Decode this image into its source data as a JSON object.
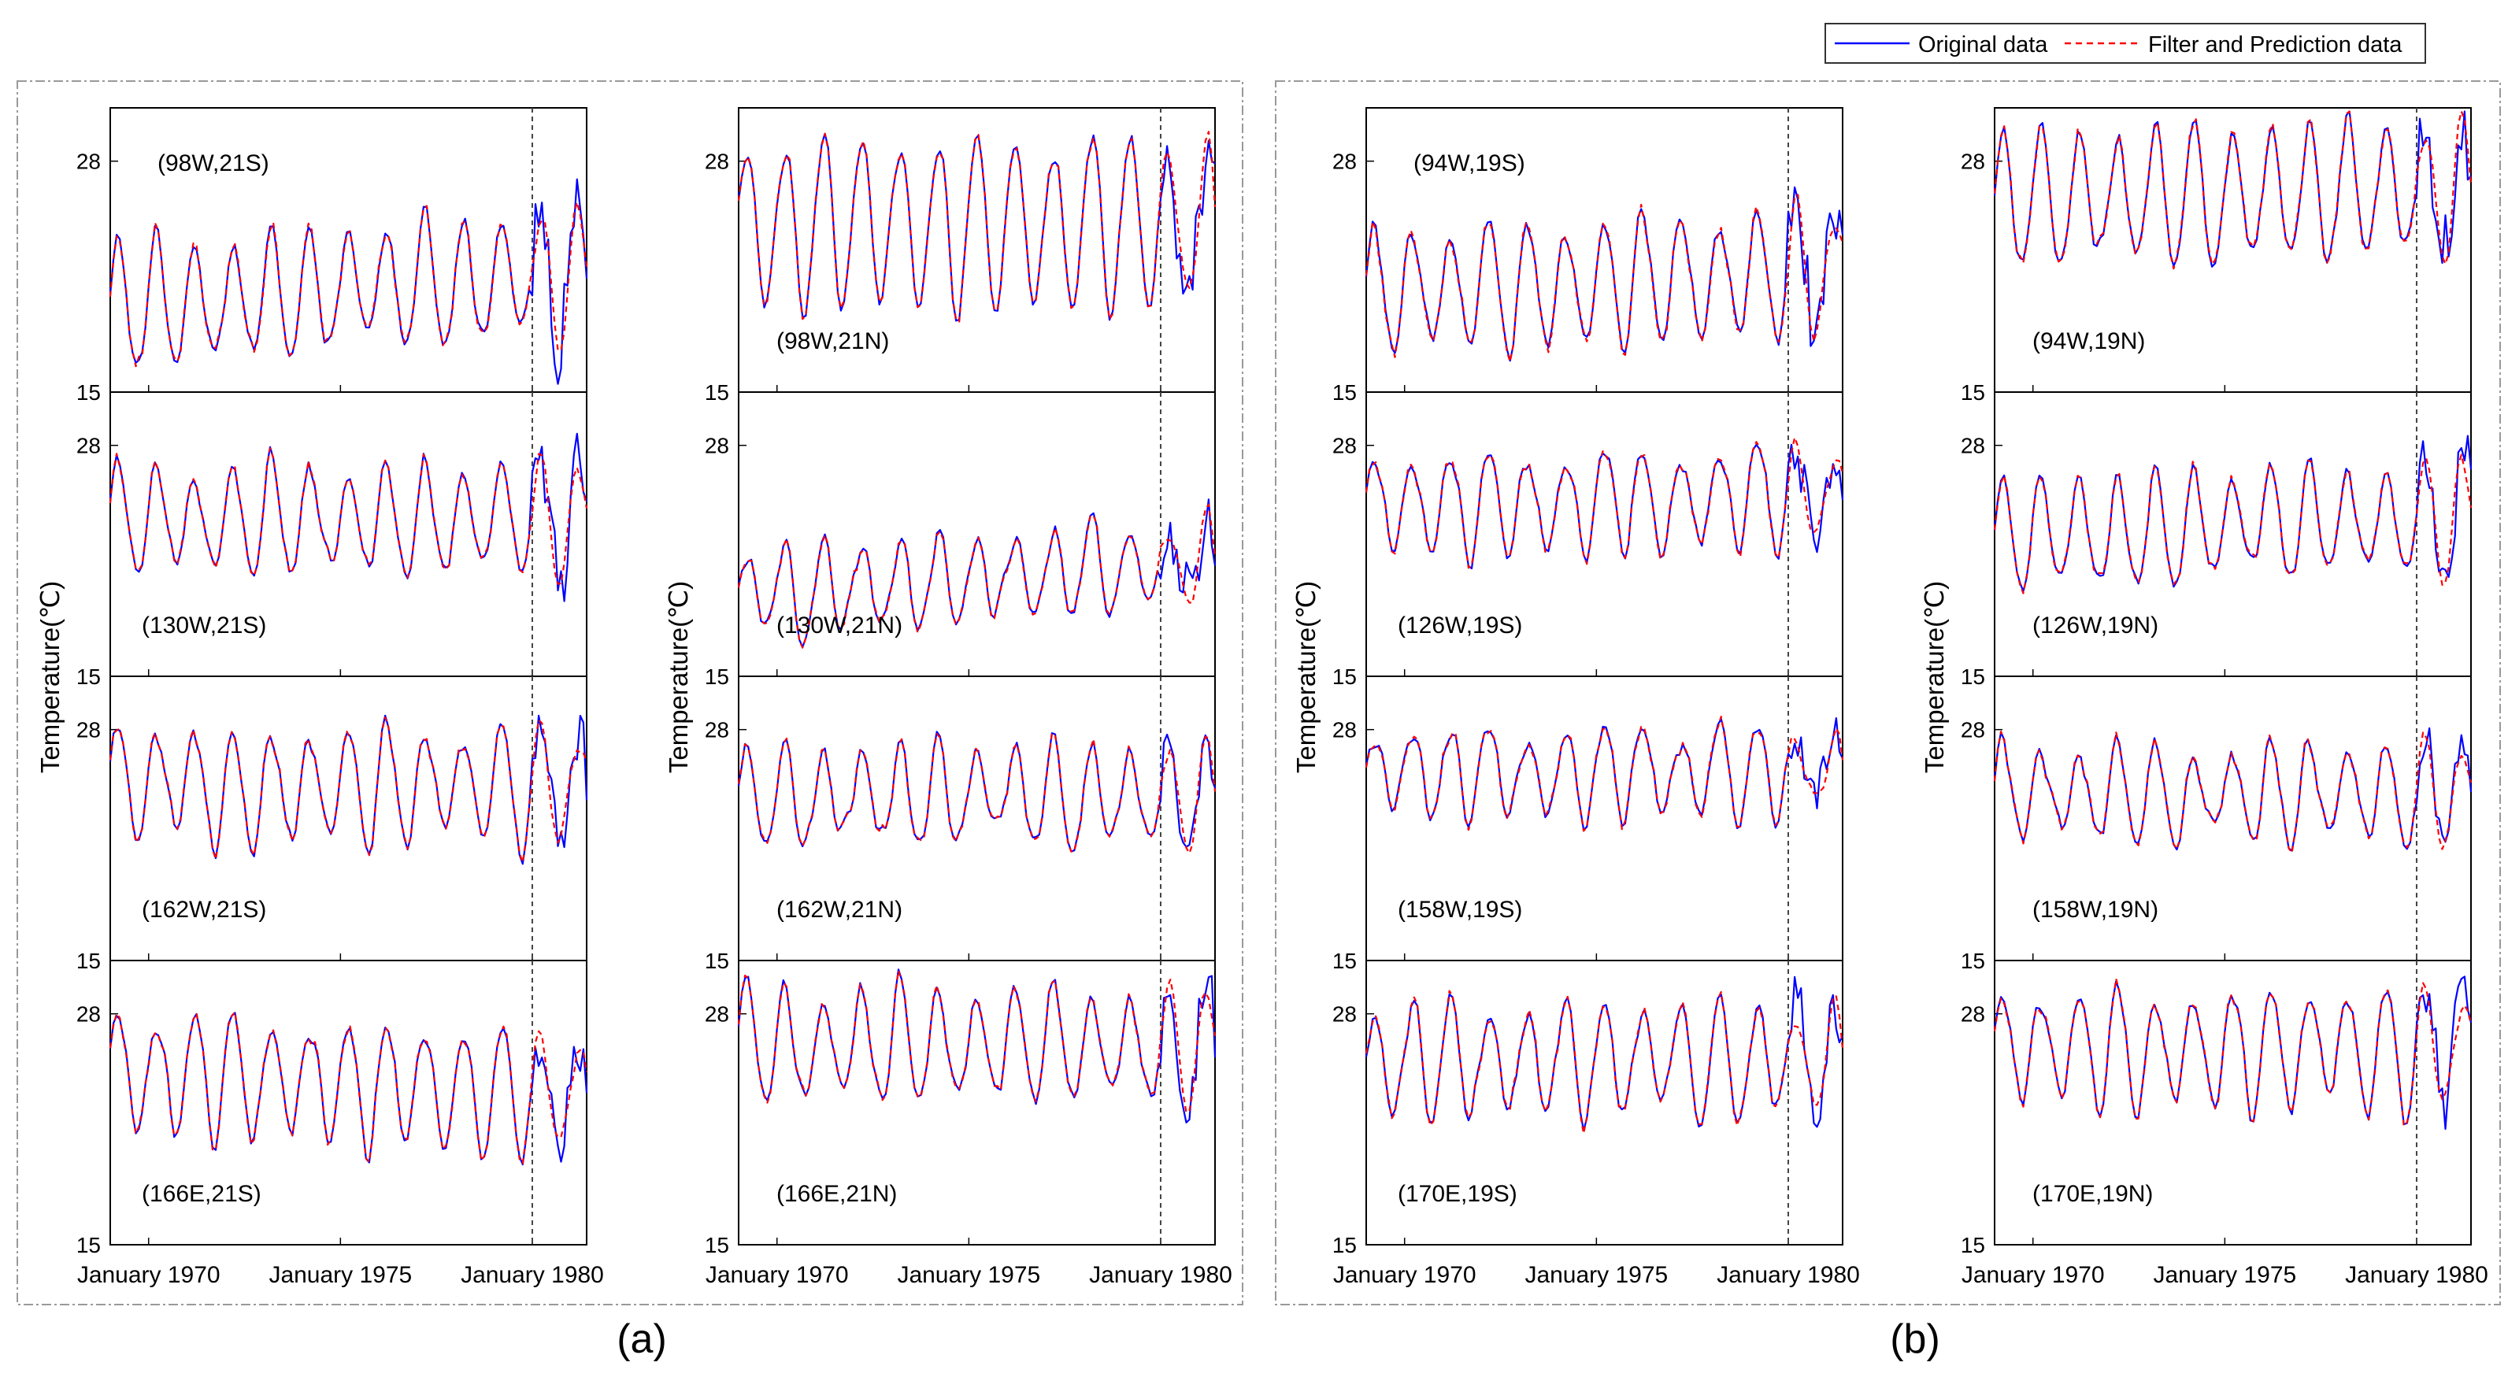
{
  "legend": {
    "original_label": "Original data",
    "filter_label": "Filter and Prediction data",
    "original_color": "#0000ff",
    "filter_color": "#ff0000"
  },
  "common": {
    "y_label": "Temperature(℃)",
    "y_ticks": [
      15,
      28
    ],
    "x_tick_labels": [
      "January 1970",
      "January 1975",
      "January 1980"
    ],
    "forecast_start_label": "January 1980"
  },
  "groups": [
    {
      "label": "(a)"
    },
    {
      "label": "(b)"
    }
  ],
  "chart_data": {
    "type": "line",
    "title": "",
    "xlabel": "",
    "ylabel": "Temperature(℃)",
    "x_range": [
      "1969-01",
      "1981-06"
    ],
    "ylim_per_panel": [
      15,
      31
    ],
    "series_names": [
      "Original data",
      "Filter and Prediction data"
    ],
    "panels": [
      {
        "group": "a",
        "column": 0,
        "row": 0,
        "label": "(98W,21S)",
        "mean": 19.8,
        "amp": 3.3,
        "trend": 0.15,
        "err": 0.45,
        "pred_shift": 1.6
      },
      {
        "group": "a",
        "column": 0,
        "row": 1,
        "label": "(130W,21S)",
        "mean": 23.8,
        "amp": 3.0,
        "trend": 0.0,
        "err": 0.25,
        "pred_shift": 1.2
      },
      {
        "group": "a",
        "column": 0,
        "row": 2,
        "label": "(162W,21S)",
        "mean": 24.8,
        "amp": 3.0,
        "trend": 0.0,
        "err": 0.25,
        "pred_shift": 1.4
      },
      {
        "group": "a",
        "column": 0,
        "row": 3,
        "label": "(166E,21S)",
        "mean": 24.6,
        "amp": 3.3,
        "trend": -0.1,
        "err": 0.3,
        "pred_shift": 1.3
      },
      {
        "group": "a",
        "column": 1,
        "row": 0,
        "label": "(98W,21N)",
        "mean": 24.4,
        "amp": 4.6,
        "trend": 0.0,
        "err": 0.3,
        "pred_shift": 1.8
      },
      {
        "group": "a",
        "column": 1,
        "row": 1,
        "label": "(130W,21N)",
        "mean": 19.6,
        "amp": 2.3,
        "trend": 0.15,
        "err": 0.3,
        "pred_shift": 1.5
      },
      {
        "group": "a",
        "column": 1,
        "row": 2,
        "label": "(162W,21N)",
        "mean": 24.2,
        "amp": 2.7,
        "trend": 0.0,
        "err": 0.25,
        "pred_shift": 1.0
      },
      {
        "group": "a",
        "column": 1,
        "row": 3,
        "label": "(166E,21N)",
        "mean": 26.2,
        "amp": 3.0,
        "trend": 0.0,
        "err": 0.3,
        "pred_shift": 1.3
      },
      {
        "group": "b",
        "column": 0,
        "row": 0,
        "label": "(94W,19S)",
        "mean": 20.6,
        "amp": 3.4,
        "trend": 0.1,
        "err": 0.55,
        "pred_shift": 1.6
      },
      {
        "group": "b",
        "column": 0,
        "row": 1,
        "label": "(126W,19S)",
        "mean": 24.6,
        "amp": 2.7,
        "trend": 0.05,
        "err": 0.35,
        "pred_shift": 1.2
      },
      {
        "group": "b",
        "column": 0,
        "row": 2,
        "label": "(158W,19S)",
        "mean": 25.6,
        "amp": 2.3,
        "trend": 0.0,
        "err": 0.35,
        "pred_shift": 1.6
      },
      {
        "group": "b",
        "column": 0,
        "row": 3,
        "label": "(170E,19S)",
        "mean": 25.4,
        "amp": 3.0,
        "trend": 0.0,
        "err": 0.4,
        "pred_shift": 1.3
      },
      {
        "group": "b",
        "column": 1,
        "row": 0,
        "label": "(94W,19N)",
        "mean": 25.8,
        "amp": 3.6,
        "trend": 0.05,
        "err": 0.45,
        "pred_shift": 1.8
      },
      {
        "group": "b",
        "column": 1,
        "row": 1,
        "label": "(126W,19N)",
        "mean": 22.8,
        "amp": 3.0,
        "trend": 0.1,
        "err": 0.35,
        "pred_shift": 1.4
      },
      {
        "group": "b",
        "column": 1,
        "row": 2,
        "label": "(158W,19N)",
        "mean": 24.4,
        "amp": 2.5,
        "trend": 0.0,
        "err": 0.3,
        "pred_shift": 1.1
      },
      {
        "group": "b",
        "column": 1,
        "row": 3,
        "label": "(170E,19N)",
        "mean": 26.0,
        "amp": 3.2,
        "trend": 0.0,
        "err": 0.3,
        "pred_shift": 1.3
      }
    ]
  }
}
